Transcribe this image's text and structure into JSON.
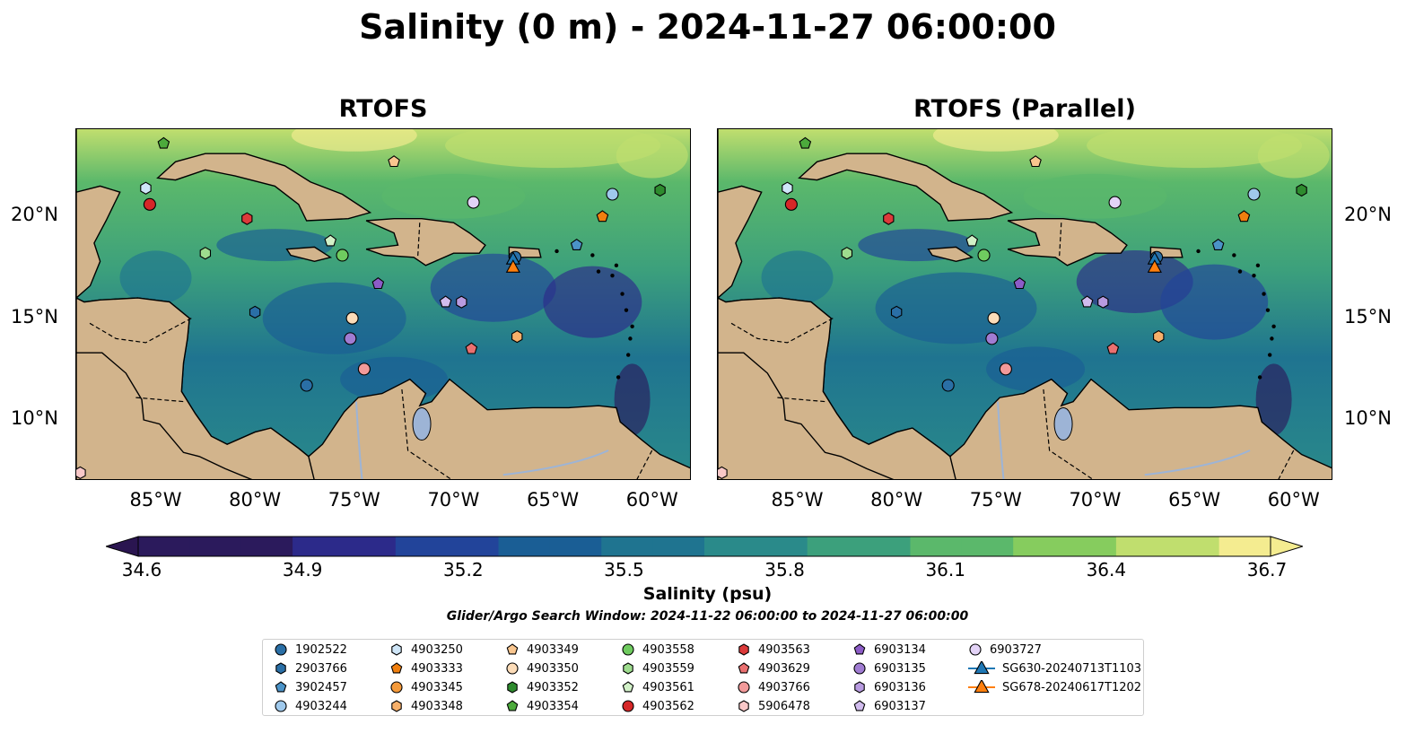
{
  "title": "Salinity (0 m) - 2024-11-27 06:00:00",
  "panels": [
    {
      "title": "RTOFS"
    },
    {
      "title": "RTOFS (Parallel)"
    }
  ],
  "axes": {
    "lon_labels": [
      "85°W",
      "80°W",
      "75°W",
      "70°W",
      "65°W",
      "60°W"
    ],
    "lat_labels": [
      "20°N",
      "15°N",
      "10°N"
    ]
  },
  "colorbar": {
    "label": "Salinity (psu)",
    "ticks": [
      "34.6",
      "34.9",
      "35.2",
      "35.5",
      "35.8",
      "36.1",
      "36.4",
      "36.7"
    ],
    "colormap": [
      "#2b1a5c",
      "#2c2a8a",
      "#22449a",
      "#1a5e95",
      "#1f7490",
      "#2a8a8a",
      "#3ca07c",
      "#5bb86b",
      "#86cc5e",
      "#c0de6e",
      "#f4ec90"
    ]
  },
  "search_window_note": "Glider/Argo Search Window: 2024-11-22 06:00:00 to 2024-11-27 06:00:00",
  "legend": [
    {
      "label": "1902522",
      "marker": "circle",
      "color": "#2a6fa6"
    },
    {
      "label": "2903766",
      "marker": "hexagon",
      "color": "#2a6fa6"
    },
    {
      "label": "3902457",
      "marker": "pentagon",
      "color": "#4b93c8"
    },
    {
      "label": "4903244",
      "marker": "circle",
      "color": "#9fc9ec"
    },
    {
      "label": "4903250",
      "marker": "hexagon",
      "color": "#cfe6f8"
    },
    {
      "label": "4903333",
      "marker": "pentagon",
      "color": "#f07f0f"
    },
    {
      "label": "4903345",
      "marker": "circle",
      "color": "#f59a3a"
    },
    {
      "label": "4903348",
      "marker": "hexagon",
      "color": "#f7b06a"
    },
    {
      "label": "4903349",
      "marker": "pentagon",
      "color": "#f9c68f"
    },
    {
      "label": "4903350",
      "marker": "circle",
      "color": "#fcdcb8"
    },
    {
      "label": "4903352",
      "marker": "hexagon",
      "color": "#2e8b2e"
    },
    {
      "label": "4903354",
      "marker": "pentagon",
      "color": "#4caa3c"
    },
    {
      "label": "4903558",
      "marker": "circle",
      "color": "#6fcb5f"
    },
    {
      "label": "4903559",
      "marker": "hexagon",
      "color": "#9edc8e"
    },
    {
      "label": "4903561",
      "marker": "pentagon",
      "color": "#d2f1c8"
    },
    {
      "label": "4903562",
      "marker": "circle",
      "color": "#d62728"
    },
    {
      "label": "4903563",
      "marker": "hexagon",
      "color": "#dc3a3a"
    },
    {
      "label": "4903629",
      "marker": "pentagon",
      "color": "#ea7070"
    },
    {
      "label": "4903766",
      "marker": "circle",
      "color": "#f29a9a"
    },
    {
      "label": "5906478",
      "marker": "hexagon",
      "color": "#f9c8c8"
    },
    {
      "label": "6903134",
      "marker": "pentagon",
      "color": "#8c5cc7"
    },
    {
      "label": "6903135",
      "marker": "circle",
      "color": "#a07cd2"
    },
    {
      "label": "6903136",
      "marker": "hexagon",
      "color": "#b89be0"
    },
    {
      "label": "6903137",
      "marker": "pentagon",
      "color": "#d1bcee"
    },
    {
      "label": "6903727",
      "marker": "circle",
      "color": "#e3d3f7"
    },
    {
      "label": "SG630-20240713T1103",
      "marker": "triangle",
      "color": "#1f77b4"
    },
    {
      "label": "SG678-20240617T1202",
      "marker": "triangle",
      "color": "#ff7f0e"
    }
  ],
  "observations": [
    {
      "id": "1902522",
      "lon": -66.9,
      "lat": 18.0
    },
    {
      "id": "4903250",
      "lon": -85.5,
      "lat": 21.4
    },
    {
      "id": "4903562",
      "lon": -85.3,
      "lat": 20.6
    },
    {
      "id": "4903563",
      "lon": -80.4,
      "lat": 19.9
    },
    {
      "id": "5906478",
      "lon": -88.8,
      "lat": 7.4
    },
    {
      "id": "4903354",
      "lon": -84.6,
      "lat": 23.6
    },
    {
      "id": "4903349",
      "lon": -73.0,
      "lat": 22.7
    },
    {
      "id": "6903727",
      "lon": -69.0,
      "lat": 20.7
    },
    {
      "id": "4903244",
      "lon": -62.0,
      "lat": 21.1
    },
    {
      "id": "4903352",
      "lon": -59.6,
      "lat": 21.3
    },
    {
      "id": "4903333",
      "lon": -62.5,
      "lat": 20.0
    },
    {
      "id": "4903559",
      "lon": -82.5,
      "lat": 18.2
    },
    {
      "id": "4903561",
      "lon": -76.2,
      "lat": 18.8
    },
    {
      "id": "4903558",
      "lon": -75.6,
      "lat": 18.1
    },
    {
      "id": "3902457",
      "lon": -63.8,
      "lat": 18.6
    },
    {
      "id": "6903134",
      "lon": -73.8,
      "lat": 16.7
    },
    {
      "id": "6903137",
      "lon": -70.4,
      "lat": 15.8
    },
    {
      "id": "6903136",
      "lon": -69.6,
      "lat": 15.8
    },
    {
      "id": "2903766",
      "lon": -80.0,
      "lat": 15.3
    },
    {
      "id": "4903350",
      "lon": -75.1,
      "lat": 15.0
    },
    {
      "id": "6903135",
      "lon": -75.2,
      "lat": 14.0
    },
    {
      "id": "4903348",
      "lon": -66.8,
      "lat": 14.1
    },
    {
      "id": "4903629",
      "lon": -69.1,
      "lat": 13.5
    },
    {
      "id": "4903766",
      "lon": -74.5,
      "lat": 12.5
    },
    {
      "id": "1902522",
      "lon": -77.4,
      "lat": 11.7
    },
    {
      "id": "SG630-20240713T1103",
      "lon": -67.0,
      "lat": 17.9
    },
    {
      "id": "SG678-20240617T1202",
      "lon": -67.0,
      "lat": 17.5
    }
  ],
  "colors": {
    "land": "#d2b48c",
    "border_line": "#000000",
    "rivers": "#9db4d6",
    "deep_pacific": "#2b1a5c"
  }
}
